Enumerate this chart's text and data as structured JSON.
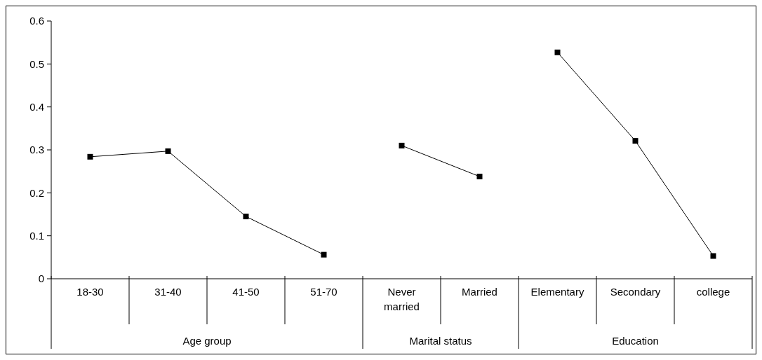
{
  "chart_data": {
    "type": "line",
    "categories": [
      "18-30",
      "31-40",
      "41-50",
      "51-70",
      "Never married",
      "Married",
      "Elementary",
      "Secondary",
      "college"
    ],
    "series": [
      {
        "color": "#000000",
        "values": [
          0.284,
          0.297,
          0.145,
          0.056,
          null,
          null,
          null,
          null,
          null
        ]
      },
      {
        "color": "#000000",
        "values": [
          null,
          null,
          null,
          null,
          0.31,
          0.238,
          null,
          null,
          null
        ]
      },
      {
        "color": "#000000",
        "values": [
          null,
          null,
          null,
          null,
          null,
          null,
          0.527,
          0.321,
          0.053
        ]
      }
    ],
    "ylim": [
      0,
      0.6
    ],
    "yticks": [
      0,
      0.1,
      0.2,
      0.3,
      0.4,
      0.5,
      0.6
    ],
    "marker": "square",
    "line_style": "solid",
    "grid": false,
    "annotations": [
      "Age group",
      "Marital status",
      "Education"
    ]
  }
}
